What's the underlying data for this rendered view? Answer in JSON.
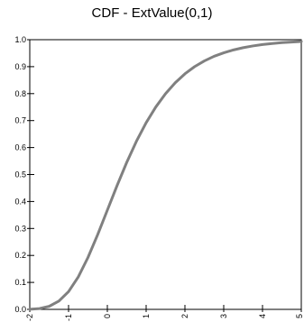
{
  "chart_data": {
    "type": "line",
    "title": "CDF - ExtValue(0,1)",
    "xlabel": "",
    "ylabel": "",
    "xlim": [
      -2,
      5
    ],
    "ylim": [
      0,
      1
    ],
    "xticks": [
      -2,
      -1,
      0,
      1,
      2,
      3,
      4,
      5
    ],
    "xtick_labels": [
      "-2",
      "-1",
      "0",
      "1",
      "2",
      "3",
      "4",
      "5"
    ],
    "yticks": [
      0,
      0.1,
      0.2,
      0.3,
      0.4,
      0.5,
      0.6,
      0.7,
      0.8,
      0.9,
      1.0
    ],
    "ytick_labels": [
      "0.0",
      "0.1",
      "0.2",
      "0.3",
      "0.4",
      "0.5",
      "0.6",
      "0.7",
      "0.8",
      "0.9",
      "1.0"
    ],
    "grid": false,
    "series": [
      {
        "color": "#808080",
        "x": [
          -2,
          -1.75,
          -1.5,
          -1.25,
          -1,
          -0.75,
          -0.5,
          -0.25,
          0,
          0.25,
          0.5,
          0.75,
          1,
          1.25,
          1.5,
          1.75,
          2,
          2.25,
          2.5,
          2.75,
          3,
          3.25,
          3.5,
          3.75,
          4,
          4.25,
          4.5,
          4.75,
          5
        ],
        "y": [
          0.0006,
          0.0031,
          0.0113,
          0.0306,
          0.066,
          0.1202,
          0.1923,
          0.2769,
          0.3679,
          0.4588,
          0.5452,
          0.6235,
          0.6922,
          0.7506,
          0.7999,
          0.8403,
          0.8734,
          0.9001,
          0.9212,
          0.9383,
          0.9514,
          0.962,
          0.9703,
          0.9768,
          0.9819,
          0.9859,
          0.989,
          0.9914,
          0.9933
        ]
      }
    ]
  }
}
